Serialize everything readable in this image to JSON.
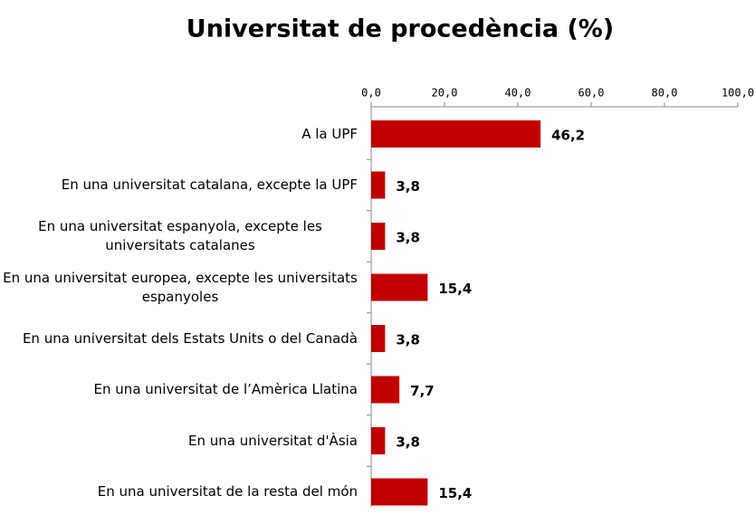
{
  "chart_data": {
    "type": "bar",
    "orientation": "horizontal",
    "title": "Universitat de procedència (%)",
    "categories": [
      "A la UPF",
      "En una universitat catalana, excepte la UPF",
      "En una universitat espanyola, excepte les universitats catalanes",
      "En una universitat europea, excepte les universitats espanyoles",
      "En una universitat dels Estats Units o del Canadà",
      "En una universitat de l’Amèrica Llatina",
      "En una universitat d'Àsia",
      "En una universitat de la resta del món"
    ],
    "values": [
      46.2,
      3.8,
      3.8,
      15.4,
      3.8,
      7.7,
      3.8,
      15.4
    ],
    "value_labels": [
      "46,2",
      "3,8",
      "3,8",
      "15,4",
      "3,8",
      "7,7",
      "3,8",
      "15,4"
    ],
    "color": "#c00000",
    "xlim": [
      0,
      100
    ],
    "xticks": [
      {
        "value": 0,
        "label": "0,0"
      },
      {
        "value": 20,
        "label": "20,0"
      },
      {
        "value": 40,
        "label": "40,0"
      },
      {
        "value": 60,
        "label": "60,0"
      },
      {
        "value": 80,
        "label": "80,0"
      },
      {
        "value": 100,
        "label": "100,0"
      }
    ],
    "grid": false
  }
}
